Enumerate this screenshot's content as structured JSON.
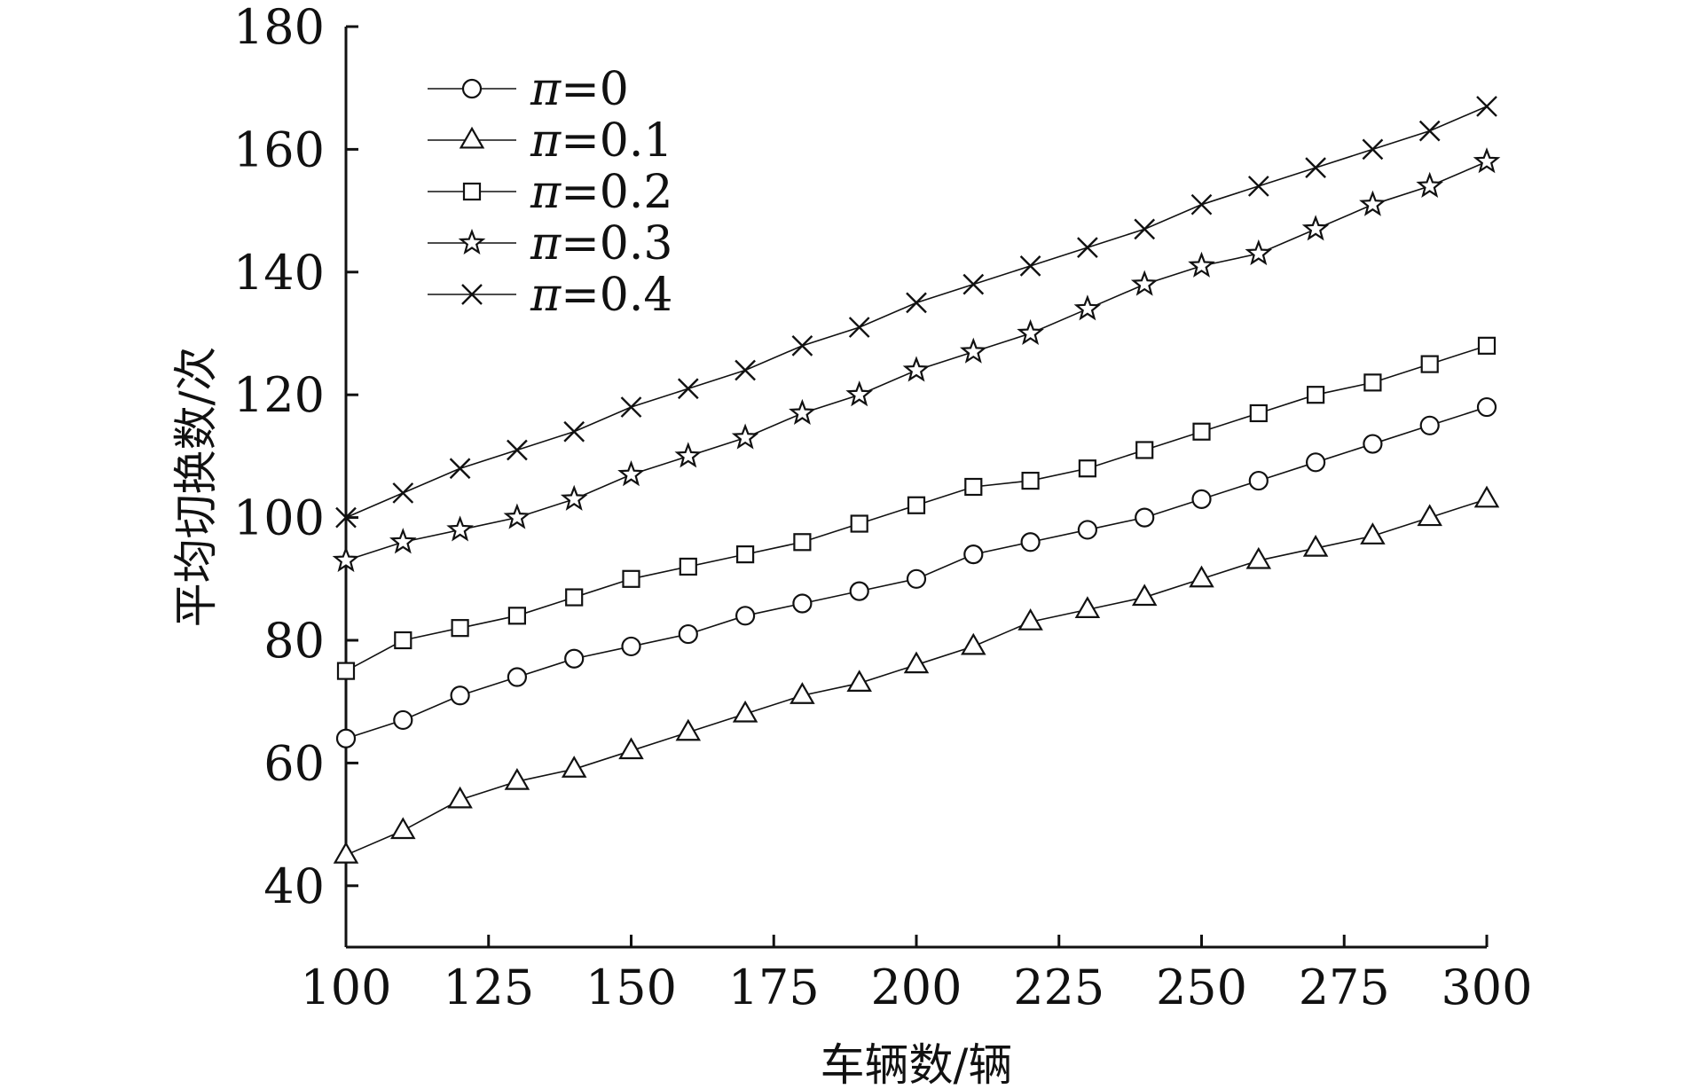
{
  "chart_data": {
    "type": "line",
    "title": "",
    "xlabel": "车辆数/辆",
    "ylabel": "平均切换数/次",
    "xlim": [
      100,
      300
    ],
    "ylim": [
      30,
      180
    ],
    "x_ticks": [
      100,
      125,
      150,
      175,
      200,
      225,
      250,
      275,
      300
    ],
    "y_ticks": [
      40,
      60,
      80,
      100,
      120,
      140,
      160,
      180
    ],
    "grid": false,
    "legend_position": "top-left",
    "x": [
      100,
      110,
      120,
      130,
      140,
      150,
      160,
      170,
      180,
      190,
      200,
      210,
      220,
      230,
      240,
      250,
      260,
      270,
      280,
      290,
      300
    ],
    "series": [
      {
        "name": "π=0",
        "legend_symbol": "π",
        "legend_value": "=0",
        "marker": "circle",
        "values": [
          64,
          67,
          71,
          74,
          77,
          79,
          81,
          84,
          86,
          88,
          90,
          94,
          96,
          98,
          100,
          103,
          106,
          109,
          112,
          115,
          118
        ]
      },
      {
        "name": "π=0.1",
        "legend_symbol": "π",
        "legend_value": "=0.1",
        "marker": "triangle",
        "values": [
          45,
          49,
          54,
          57,
          59,
          62,
          65,
          68,
          71,
          73,
          76,
          79,
          83,
          85,
          87,
          90,
          93,
          95,
          97,
          100,
          103
        ]
      },
      {
        "name": "π=0.2",
        "legend_symbol": "π",
        "legend_value": "=0.2",
        "marker": "square",
        "values": [
          75,
          80,
          82,
          84,
          87,
          90,
          92,
          94,
          96,
          99,
          102,
          105,
          106,
          108,
          111,
          114,
          117,
          120,
          122,
          125,
          128
        ]
      },
      {
        "name": "π=0.3",
        "legend_symbol": "π",
        "legend_value": "=0.3",
        "marker": "star",
        "values": [
          93,
          96,
          98,
          100,
          103,
          107,
          110,
          113,
          117,
          120,
          124,
          127,
          130,
          134,
          138,
          141,
          143,
          147,
          151,
          154,
          158
        ]
      },
      {
        "name": "π=0.4",
        "legend_symbol": "π",
        "legend_value": "=0.4",
        "marker": "x",
        "values": [
          100,
          104,
          108,
          111,
          114,
          118,
          121,
          124,
          128,
          131,
          135,
          138,
          141,
          144,
          147,
          151,
          154,
          157,
          160,
          163,
          167
        ]
      }
    ]
  }
}
